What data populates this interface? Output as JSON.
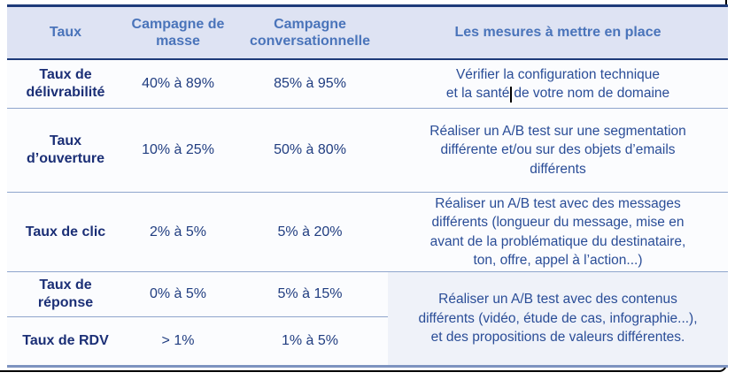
{
  "colors": {
    "header-bg": "#dee3f3",
    "header-text": "#4a74ba",
    "navy-border": "#1e3a79",
    "label-text": "#1b2f76",
    "value-text": "#203d80",
    "mesure-text": "#2a4d97",
    "separator": "#8fa5cc",
    "bottom-border": "#7d93c0",
    "merged-bg": "#eff2f9",
    "row-bg": "#fbfcfe",
    "frame": "#000000"
  },
  "table": {
    "headers": {
      "taux": "Taux",
      "masse": "Campagne de masse",
      "conversationnelle": "Campagne conversationnelle",
      "mesures": "Les mesures à mettre en place"
    },
    "rows": [
      {
        "label": "Taux de délivrabilité",
        "masse": "40% à 89%",
        "conv": "85% à 95%",
        "mesure": {
          "line1": "Vérifier la configuration technique",
          "line2_before_caret": "et la santé",
          "line2_after_caret": "de votre nom de domaine"
        }
      },
      {
        "label": "Taux d’ouverture",
        "masse": "10% à 25%",
        "conv": "50% à 80%",
        "mesure_lines": [
          "Réaliser un A/B test sur une segmentation",
          "différente et/ou sur des objets d’emails",
          "différents"
        ]
      },
      {
        "label": "Taux de clic",
        "masse": "2% à 5%",
        "conv": "5% à 20%",
        "mesure_lines": [
          "Réaliser un A/B test avec des messages",
          "différents (longueur du message, mise en",
          "avant de la problématique du destinataire,",
          "ton, offre, appel à l’action...)"
        ]
      },
      {
        "label": "Taux de réponse",
        "masse": "0% à 5%",
        "conv": "5% à 15%"
      },
      {
        "label": "Taux de RDV",
        "masse": "> 1%",
        "conv": "1% à 5%"
      }
    ],
    "merged_mesure_lines": [
      "Réaliser un A/B test avec des contenus",
      "différents (vidéo, étude de cas, infographie...),",
      "et des propositions de valeurs différentes."
    ]
  }
}
